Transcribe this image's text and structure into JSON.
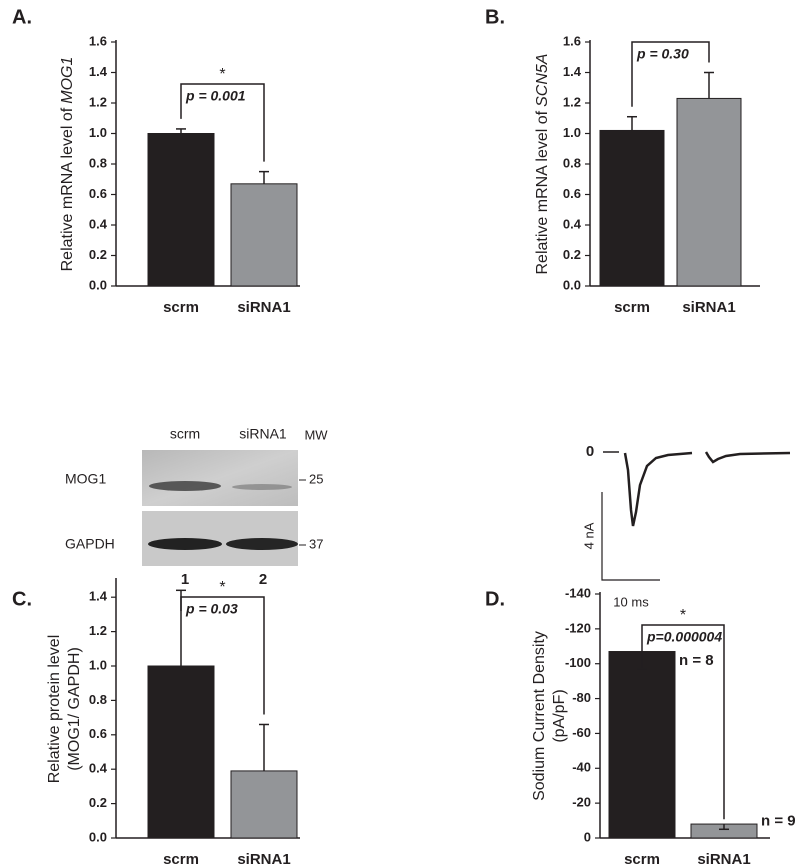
{
  "chart_data": [
    {
      "type": "bar",
      "label": "A.",
      "ylabel": [
        "Relative mRNA level of"
      ],
      "ylabel_italic": "MOG1",
      "categories": [
        "scrm",
        "siRNA1"
      ],
      "values": [
        1.0,
        0.67
      ],
      "errors": [
        0.03,
        0.08
      ],
      "colors": [
        "#231f20",
        "#939598"
      ],
      "ylim": [
        0,
        1.6
      ],
      "yticks": [
        {
          "value": 0,
          "label": "0.0"
        },
        {
          "value": 0.2,
          "label": "0.2"
        },
        {
          "value": 0.4,
          "label": "0.4"
        },
        {
          "value": 0.6,
          "label": "0.6"
        },
        {
          "value": 0.8,
          "label": "0.8"
        },
        {
          "value": 1.0,
          "label": "1.0"
        },
        {
          "value": 1.2,
          "label": "1.2"
        },
        {
          "value": 1.4,
          "label": "1.4"
        },
        {
          "value": 1.6,
          "label": "1.6"
        }
      ],
      "significance": "*",
      "p_value": "p = 0.001"
    },
    {
      "type": "bar",
      "label": "B.",
      "ylabel": [
        "Relative mRNA level of"
      ],
      "ylabel_italic": "SCN5A",
      "categories": [
        "scrm",
        "siRNA1"
      ],
      "values": [
        1.02,
        1.23
      ],
      "errors": [
        0.09,
        0.17
      ],
      "colors": [
        "#231f20",
        "#939598"
      ],
      "ylim": [
        0,
        1.6
      ],
      "yticks": [
        {
          "value": 0,
          "label": "0.0"
        },
        {
          "value": 0.2,
          "label": "0.2"
        },
        {
          "value": 0.4,
          "label": "0.4"
        },
        {
          "value": 0.6,
          "label": "0.6"
        },
        {
          "value": 0.8,
          "label": "0.8"
        },
        {
          "value": 1.0,
          "label": "1.0"
        },
        {
          "value": 1.2,
          "label": "1.2"
        },
        {
          "value": 1.4,
          "label": "1.4"
        },
        {
          "value": 1.6,
          "label": "1.6"
        }
      ],
      "p_value": "p = 0.30"
    },
    {
      "type": "bar",
      "label": "C.",
      "ylabel": [
        "Relative protein level",
        "(MOG1/ GAPDH)"
      ],
      "categories": [
        "scrm",
        "siRNA1"
      ],
      "values": [
        1.0,
        0.39
      ],
      "errors": [
        0.44,
        0.27
      ],
      "colors": [
        "#231f20",
        "#939598"
      ],
      "ylim": [
        0,
        1.5
      ],
      "yticks": [
        {
          "value": 0,
          "label": "0.0"
        },
        {
          "value": 0.2,
          "label": "0.2"
        },
        {
          "value": 0.4,
          "label": "0.4"
        },
        {
          "value": 0.6,
          "label": "0.6"
        },
        {
          "value": 0.8,
          "label": "0.8"
        },
        {
          "value": 1.0,
          "label": "1.0"
        },
        {
          "value": 1.2,
          "label": "1.2"
        },
        {
          "value": 1.4,
          "label": "1.4"
        }
      ],
      "significance": "*",
      "p_value": "p = 0.03",
      "blot": {
        "lanes": [
          "scrm",
          "siRNA1"
        ],
        "mw_label": "MW",
        "rows": [
          {
            "name": "MOG1",
            "mw": "25"
          },
          {
            "name": "GAPDH",
            "mw": "37"
          }
        ],
        "lane_numbers": [
          "1",
          "2"
        ]
      }
    },
    {
      "type": "bar",
      "label": "D.",
      "ylabel": [
        "Sodium Current Density",
        "(pA/pF)"
      ],
      "categories": [
        "scrm",
        "siRNA1"
      ],
      "values": [
        -107,
        -8
      ],
      "errors": [
        10,
        3
      ],
      "colors": [
        "#231f20",
        "#939598"
      ],
      "n_labels": [
        "n = 8",
        "n = 9"
      ],
      "ylim": [
        0,
        -140
      ],
      "yticks": [
        0,
        -20,
        -40,
        -60,
        -80,
        -100,
        -120,
        -140
      ],
      "significance": "*",
      "p_value": "p=0.000004",
      "trace": {
        "zero_label": "0",
        "current_scale": "4 nA",
        "time_scale": "10 ms"
      }
    }
  ]
}
